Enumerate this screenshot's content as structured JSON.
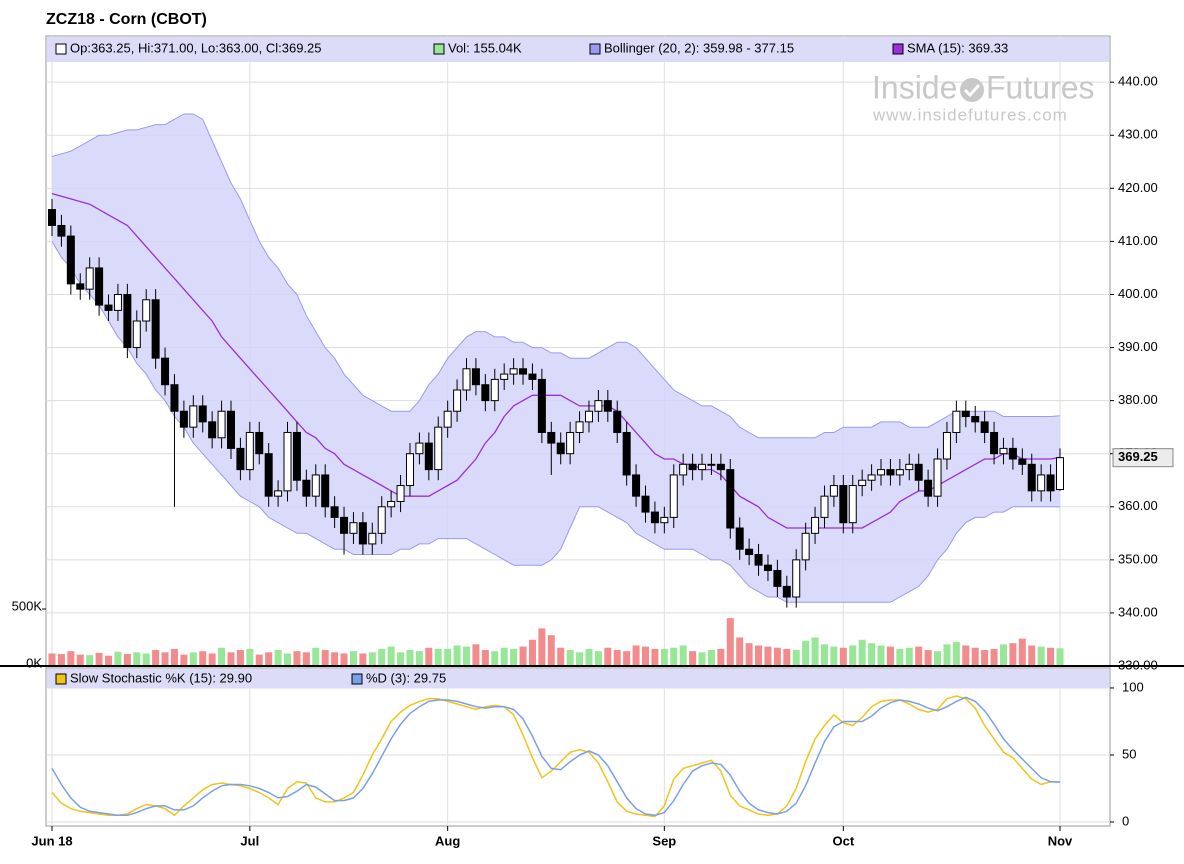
{
  "chart_data": [
    {
      "type": "candlestick",
      "title": "ZCZ18 - Corn (CBOT)",
      "logo": [
        "Inside",
        "Futures"
      ],
      "logo_url": "www.insidefutures.com",
      "ohlc_label": "Op:363.25, Hi:371.00, Lo:363.00, Cl:369.25",
      "ohlc_color": "#ffffff",
      "up_color": "#ffffff",
      "down_color": "#000000",
      "categories": [
        "Jun 18",
        null,
        null,
        null,
        null,
        null,
        null,
        null,
        null,
        null,
        null,
        null,
        null,
        null,
        null,
        null,
        null,
        null,
        null,
        null,
        null,
        "Jul",
        null,
        null,
        null,
        null,
        null,
        null,
        null,
        null,
        null,
        null,
        null,
        null,
        null,
        null,
        null,
        null,
        null,
        null,
        null,
        null,
        "Aug",
        null,
        null,
        null,
        null,
        null,
        null,
        null,
        null,
        null,
        null,
        null,
        null,
        null,
        null,
        null,
        null,
        null,
        null,
        null,
        null,
        null,
        null,
        "Sep",
        null,
        null,
        null,
        null,
        null,
        null,
        null,
        null,
        null,
        null,
        null,
        null,
        null,
        null,
        null,
        null,
        null,
        null,
        "Oct",
        null,
        null,
        null,
        null,
        null,
        null,
        null,
        null,
        null,
        null,
        null,
        null,
        null,
        null,
        null,
        null,
        null,
        null,
        null,
        null,
        null,
        null,
        "Nov"
      ],
      "open": [
        416,
        413,
        411,
        402,
        401,
        405,
        398,
        397,
        400,
        390,
        395,
        399,
        388,
        383,
        378,
        375,
        379,
        376,
        373,
        378,
        371,
        367,
        374,
        370,
        362,
        363,
        374,
        365,
        362,
        366,
        360,
        358,
        355,
        357,
        353,
        355,
        360,
        361,
        364,
        370,
        372,
        367,
        375,
        378,
        382,
        386,
        383,
        380,
        384,
        385,
        386,
        385,
        384,
        374,
        372,
        370,
        374,
        376,
        378,
        380,
        378,
        374,
        366,
        362,
        359,
        357,
        358,
        366,
        368,
        367,
        368,
        368,
        367,
        356,
        352,
        351,
        349,
        348,
        345,
        343,
        350,
        355,
        358,
        362,
        364,
        357,
        364,
        365,
        366,
        367,
        366,
        367,
        368,
        365,
        362,
        369,
        374,
        378,
        377,
        376,
        374,
        370,
        371,
        369,
        368,
        363,
        366,
        363.25
      ],
      "high": [
        418,
        415,
        413,
        404,
        407,
        407,
        400,
        402,
        402,
        397,
        401,
        401,
        390,
        385,
        380,
        381,
        381,
        378,
        380,
        380,
        373,
        376,
        376,
        372,
        365,
        376,
        376,
        367,
        368,
        368,
        362,
        360,
        359,
        359,
        357,
        362,
        363,
        366,
        372,
        374,
        374,
        377,
        380,
        384,
        388,
        388,
        385,
        386,
        387,
        388,
        388,
        387,
        386,
        376,
        374,
        376,
        378,
        380,
        382,
        382,
        380,
        376,
        368,
        364,
        361,
        360,
        368,
        370,
        370,
        370,
        370,
        370,
        369,
        358,
        354,
        353,
        351,
        350,
        347,
        352,
        357,
        360,
        364,
        366,
        366,
        366,
        367,
        368,
        369,
        369,
        369,
        370,
        370,
        367,
        371,
        376,
        380,
        380,
        379,
        378,
        376,
        373,
        373,
        371,
        370,
        368,
        368,
        371
      ],
      "low": [
        411,
        409,
        400,
        399,
        399,
        396,
        395,
        395,
        388,
        388,
        393,
        386,
        381,
        360,
        373,
        373,
        374,
        371,
        371,
        369,
        365,
        365,
        368,
        360,
        360,
        361,
        363,
        360,
        360,
        358,
        356,
        351,
        353,
        351,
        351,
        353,
        358,
        359,
        362,
        368,
        365,
        365,
        373,
        376,
        380,
        381,
        378,
        378,
        382,
        383,
        383,
        382,
        372,
        366,
        368,
        368,
        372,
        374,
        376,
        376,
        372,
        364,
        360,
        357,
        355,
        355,
        356,
        364,
        365,
        365,
        366,
        365,
        354,
        350,
        349,
        347,
        346,
        343,
        341,
        341,
        348,
        353,
        356,
        360,
        355,
        355,
        362,
        363,
        364,
        364,
        364,
        365,
        363,
        360,
        360,
        367,
        372,
        375,
        374,
        372,
        368,
        368,
        367,
        366,
        361,
        361,
        361,
        363
      ],
      "close": [
        413,
        411,
        402,
        401,
        405,
        398,
        397,
        400,
        390,
        395,
        399,
        388,
        383,
        378,
        375,
        379,
        376,
        373,
        378,
        371,
        367,
        374,
        370,
        362,
        363,
        374,
        365,
        362,
        366,
        360,
        358,
        355,
        357,
        353,
        355,
        360,
        361,
        364,
        370,
        372,
        367,
        375,
        378,
        382,
        386,
        383,
        380,
        384,
        385,
        386,
        385,
        384,
        374,
        372,
        370,
        374,
        376,
        378,
        380,
        378,
        374,
        366,
        362,
        359,
        357,
        358,
        366,
        368,
        367,
        368,
        368,
        367,
        356,
        352,
        351,
        349,
        348,
        345,
        343,
        350,
        355,
        358,
        362,
        364,
        357,
        364,
        365,
        366,
        367,
        366,
        367,
        368,
        365,
        362,
        369,
        374,
        378,
        377,
        376,
        374,
        370,
        371,
        369,
        368,
        363,
        366,
        363,
        369.25
      ],
      "bollinger": {
        "name": "Bollinger (20, 2): 359.98 - 377.15",
        "color": "#9a9af0",
        "fill": "#d4d4fa",
        "upper": [
          426,
          426.5,
          427,
          428,
          429,
          430,
          430,
          430.5,
          431,
          431,
          431.5,
          432,
          432,
          433,
          434,
          434,
          433,
          429,
          425,
          421,
          418,
          414,
          410,
          407,
          405,
          402,
          400,
          396,
          393,
          390,
          388,
          385,
          383,
          381,
          380,
          379,
          378,
          378,
          378,
          380,
          383,
          385,
          388,
          390,
          392,
          393,
          393,
          392,
          392,
          391,
          391,
          390,
          390,
          389,
          389,
          388,
          388,
          388,
          389,
          390,
          391,
          391,
          390,
          388,
          386,
          384,
          382,
          381,
          380,
          379,
          379,
          378,
          377,
          375,
          374,
          373,
          373,
          373,
          373,
          373,
          373,
          373,
          374,
          374,
          375,
          375,
          375,
          375,
          376,
          376,
          376,
          375,
          375,
          375,
          376,
          377,
          378,
          378,
          378,
          378,
          378,
          377,
          377,
          377,
          377,
          377,
          377,
          377.15
        ],
        "lower": [
          410,
          407,
          405,
          402,
          400,
          398,
          395,
          392,
          390,
          387,
          385,
          382,
          380,
          377,
          375,
          372,
          370,
          368,
          366,
          364,
          362,
          361,
          360,
          358,
          357,
          356,
          355,
          355,
          354,
          353,
          352,
          352,
          351,
          351,
          351,
          351,
          351,
          352,
          352,
          353,
          353,
          354,
          354,
          354,
          354,
          353,
          352,
          351,
          350,
          349,
          349,
          349,
          349,
          350,
          352,
          356,
          360,
          360,
          360,
          359,
          358,
          357,
          355,
          354,
          353,
          352,
          352,
          352,
          352,
          351,
          350,
          350,
          349,
          347,
          345,
          344,
          343,
          343,
          342,
          342,
          342,
          342,
          342,
          342,
          342,
          342,
          342,
          342,
          342,
          342,
          343,
          344,
          345,
          347,
          350,
          352,
          355,
          357,
          358,
          358,
          359,
          359,
          360,
          360,
          360,
          360,
          360,
          359.98
        ]
      },
      "sma": {
        "name": "SMA (15): 369.33",
        "color": "#9b30d9",
        "values": [
          419,
          418.5,
          418,
          417.5,
          417,
          416,
          415,
          414,
          413,
          411,
          409,
          407,
          405,
          403,
          401,
          399,
          397,
          395,
          392,
          390,
          388,
          386,
          384,
          382,
          380,
          378,
          376,
          374,
          373,
          371,
          370,
          368,
          367,
          366,
          365,
          364,
          363,
          362,
          362,
          362,
          362,
          363,
          364,
          365,
          367,
          369,
          372,
          374,
          377,
          379,
          380,
          381,
          381,
          381,
          381,
          380,
          379,
          379,
          379,
          379,
          378,
          376,
          374,
          372,
          370,
          369,
          369,
          368,
          368,
          367,
          367,
          366,
          364,
          362,
          361,
          360,
          358,
          357,
          356,
          356,
          356,
          356,
          356,
          356,
          356,
          356,
          356,
          357,
          358,
          359,
          361,
          362,
          363,
          363,
          364,
          365,
          366,
          367,
          368,
          369,
          369,
          370,
          370,
          369,
          369,
          369,
          369,
          369.33
        ]
      },
      "volume": {
        "name": "Vol: 155.04K",
        "color": "#98e698",
        "up_color": "#98e698",
        "down_color": "#f28b8b",
        "values": [
          110,
          105,
          130,
          100,
          95,
          115,
          90,
          125,
          105,
          120,
          110,
          140,
          120,
          150,
          100,
          120,
          130,
          110,
          160,
          120,
          140,
          150,
          100,
          120,
          140,
          110,
          130,
          120,
          160,
          140,
          120,
          110,
          130,
          110,
          120,
          150,
          170,
          120,
          140,
          130,
          160,
          150,
          150,
          180,
          170,
          190,
          140,
          130,
          160,
          150,
          170,
          230,
          330,
          270,
          160,
          140,
          120,
          150,
          130,
          160,
          140,
          130,
          180,
          170,
          150,
          150,
          160,
          180,
          130,
          120,
          140,
          150,
          420,
          250,
          200,
          180,
          170,
          160,
          150,
          140,
          220,
          250,
          190,
          170,
          160,
          180,
          230,
          200,
          180,
          170,
          150,
          160,
          170,
          140,
          130,
          190,
          210,
          180,
          160,
          140,
          150,
          190,
          200,
          240,
          180,
          170,
          160,
          155.04
        ],
        "ylim": [
          0,
          500
        ],
        "yticks": [
          {
            "value": 0,
            "label": "0K"
          },
          {
            "value": 500,
            "label": "500K"
          }
        ]
      },
      "ylim": [
        330,
        448.7
      ],
      "yticks": [
        {
          "value": 330,
          "label": "330.00"
        },
        {
          "value": 340,
          "label": "340.00"
        },
        {
          "value": 350,
          "label": "350.00"
        },
        {
          "value": 360,
          "label": "360.00"
        },
        {
          "value": 370,
          "label": "370.00"
        },
        {
          "value": 380,
          "label": "380.00"
        },
        {
          "value": 390,
          "label": "390.00"
        },
        {
          "value": 400,
          "label": "400.00"
        },
        {
          "value": 410,
          "label": "410.00"
        },
        {
          "value": 420,
          "label": "420.00"
        },
        {
          "value": 430,
          "label": "430.00"
        },
        {
          "value": 440,
          "label": "440.00"
        }
      ],
      "grid": true
    },
    {
      "type": "line",
      "series": [
        {
          "name": "Slow Stochastic %K (15): 29.90",
          "color": "#f0c419",
          "values": [
            22,
            14,
            10,
            8,
            7,
            6,
            5,
            5,
            6,
            10,
            13,
            12,
            10,
            5,
            12,
            18,
            24,
            28,
            29,
            28,
            27,
            25,
            22,
            18,
            13,
            25,
            30,
            29,
            18,
            15,
            15,
            18,
            22,
            35,
            50,
            62,
            75,
            82,
            87,
            90,
            92,
            92,
            90,
            88,
            86,
            84,
            86,
            87,
            86,
            80,
            65,
            48,
            33,
            38,
            45,
            52,
            54,
            52,
            44,
            30,
            15,
            8,
            6,
            5,
            4,
            12,
            32,
            40,
            42,
            44,
            46,
            38,
            20,
            12,
            9,
            6,
            5,
            6,
            12,
            25,
            45,
            62,
            72,
            80,
            74,
            72,
            78,
            86,
            90,
            91,
            91,
            88,
            84,
            82,
            84,
            92,
            94,
            92,
            85,
            72,
            62,
            52,
            48,
            40,
            32,
            28,
            30,
            29.9
          ]
        },
        {
          "name": "%D (3): 29.75",
          "color": "#7aa0e8",
          "values": [
            40,
            28,
            18,
            11,
            8,
            7,
            6,
            5,
            5,
            7,
            10,
            12,
            12,
            9,
            9,
            12,
            18,
            23,
            27,
            28,
            28,
            27,
            25,
            22,
            18,
            19,
            23,
            28,
            26,
            21,
            16,
            16,
            18,
            25,
            36,
            49,
            62,
            73,
            81,
            86,
            90,
            91,
            91,
            90,
            88,
            86,
            85,
            86,
            86,
            84,
            77,
            64,
            49,
            40,
            39,
            45,
            50,
            53,
            50,
            42,
            30,
            18,
            10,
            6,
            5,
            7,
            16,
            28,
            38,
            42,
            44,
            43,
            35,
            23,
            14,
            9,
            7,
            6,
            8,
            14,
            27,
            44,
            60,
            71,
            75,
            75,
            75,
            79,
            85,
            89,
            91,
            90,
            88,
            85,
            83,
            86,
            90,
            93,
            90,
            83,
            73,
            62,
            54,
            47,
            40,
            33,
            30,
            29.75
          ]
        }
      ],
      "ylim": [
        0,
        113.4
      ],
      "yticks": [
        0,
        50,
        100
      ],
      "grid": true
    }
  ]
}
